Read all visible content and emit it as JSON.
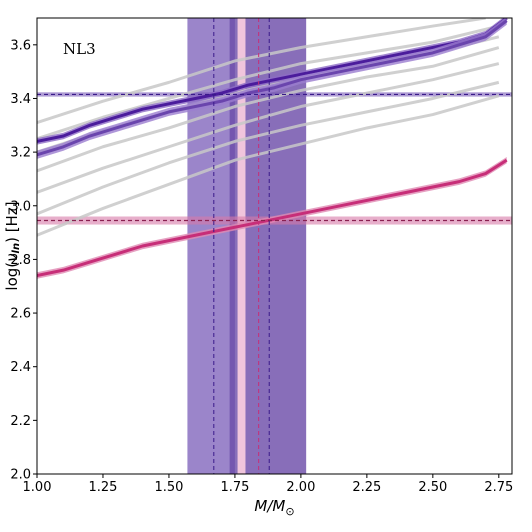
{
  "chart_data": {
    "type": "line",
    "annotation": "NL3",
    "xlabel": "M/M⊙",
    "ylabel": "log(νₗₙ) [Hz]",
    "xlim": [
      1.0,
      2.8
    ],
    "ylim": [
      2.0,
      3.7
    ],
    "xticks": [
      1.0,
      1.25,
      1.5,
      1.75,
      2.0,
      2.25,
      2.5,
      2.75
    ],
    "xtick_labels": [
      "1.00",
      "1.25",
      "1.50",
      "1.75",
      "2.00",
      "2.25",
      "2.50",
      "2.75"
    ],
    "yticks": [
      2.0,
      2.2,
      2.4,
      2.6,
      2.8,
      3.0,
      3.2,
      3.4,
      3.6
    ],
    "ytick_labels": [
      "2.0",
      "2.2",
      "2.4",
      "2.6",
      "2.8",
      "3.0",
      "3.2",
      "3.4",
      "3.6"
    ],
    "colors": {
      "purple_dark": "#4b1c9c",
      "purple_band": "#7a5cb8",
      "purple_light": "#a07fcf",
      "magenta": "#c72e78",
      "magenta_band": "#d779a8",
      "pink_line": "#f2c7d8",
      "gray": "#c8c8c8"
    },
    "vertical_bands": [
      {
        "x_min": 1.57,
        "x_max": 1.75,
        "color": "#7a5cb8",
        "opacity": 0.75
      },
      {
        "x_min": 1.73,
        "x_max": 2.02,
        "color": "#6a4aa8",
        "opacity": 0.8
      },
      {
        "x_min": 1.76,
        "x_max": 1.79,
        "color": "#f6c9dd",
        "opacity": 0.95
      }
    ],
    "vertical_lines": [
      {
        "x": 1.67,
        "color": "#3a1a8a",
        "dashed": true
      },
      {
        "x": 1.84,
        "color": "#c72e78",
        "dashed": true
      },
      {
        "x": 1.88,
        "color": "#3a1a8a",
        "dashed": true
      }
    ],
    "horizontal_bands": [
      {
        "y": 3.415,
        "half_width": 0.008,
        "color": "#7a5cb8",
        "opacity": 0.6
      },
      {
        "y": 2.945,
        "half_width": 0.015,
        "color": "#d779a8",
        "opacity": 0.6
      }
    ],
    "horizontal_lines": [
      {
        "y": 3.415,
        "color": "#3a1a8a",
        "dashed": true
      },
      {
        "y": 2.945,
        "color": "#8a2050",
        "dashed": true
      }
    ],
    "gray_curves": [
      {
        "x": [
          1.0,
          1.25,
          1.5,
          1.75,
          2.0,
          2.25,
          2.5,
          2.7
        ],
        "y": [
          3.31,
          3.39,
          3.46,
          3.54,
          3.59,
          3.63,
          3.67,
          3.7
        ]
      },
      {
        "x": [
          1.0,
          1.25,
          1.5,
          1.75,
          2.0,
          2.25,
          2.5,
          2.75
        ],
        "y": [
          3.25,
          3.33,
          3.4,
          3.47,
          3.53,
          3.57,
          3.61,
          3.67
        ]
      },
      {
        "x": [
          1.0,
          1.25,
          1.5,
          1.75,
          2.0,
          2.25,
          2.5,
          2.75
        ],
        "y": [
          3.2,
          3.28,
          3.35,
          3.42,
          3.48,
          3.53,
          3.57,
          3.63
        ]
      },
      {
        "x": [
          1.0,
          1.25,
          1.5,
          1.75,
          2.0,
          2.25,
          2.5,
          2.75
        ],
        "y": [
          3.13,
          3.22,
          3.29,
          3.37,
          3.43,
          3.48,
          3.52,
          3.59
        ]
      },
      {
        "x": [
          1.0,
          1.25,
          1.5,
          1.75,
          2.0,
          2.25,
          2.5,
          2.75
        ],
        "y": [
          3.05,
          3.14,
          3.22,
          3.3,
          3.37,
          3.42,
          3.47,
          3.53
        ]
      },
      {
        "x": [
          1.0,
          1.25,
          1.5,
          1.75,
          2.0,
          2.25,
          2.5,
          2.75
        ],
        "y": [
          2.97,
          3.07,
          3.16,
          3.24,
          3.3,
          3.35,
          3.4,
          3.46
        ]
      },
      {
        "x": [
          1.0,
          1.25,
          1.5,
          1.75,
          2.0,
          2.25,
          2.5,
          2.75
        ],
        "y": [
          2.89,
          2.99,
          3.08,
          3.17,
          3.23,
          3.29,
          3.34,
          3.41
        ]
      }
    ],
    "series": [
      {
        "x": [
          1.0,
          1.1,
          1.2,
          1.3,
          1.4,
          1.5,
          1.6,
          1.7,
          1.8,
          1.9,
          2.0,
          2.1,
          2.2,
          2.3,
          2.4,
          2.5,
          2.6,
          2.7,
          2.78
        ],
        "y": [
          3.24,
          3.26,
          3.3,
          3.33,
          3.36,
          3.38,
          3.4,
          3.42,
          3.45,
          3.47,
          3.49,
          3.51,
          3.53,
          3.55,
          3.57,
          3.59,
          3.61,
          3.64,
          3.7
        ],
        "color": "#4b1c9c",
        "band_color": "#8d6cc6",
        "band_half_width": 0.012
      },
      {
        "x": [
          1.0,
          1.1,
          1.2,
          1.3,
          1.4,
          1.5,
          1.6,
          1.7,
          1.8,
          1.9,
          2.0,
          2.1,
          2.2,
          2.3,
          2.4,
          2.5,
          2.6,
          2.7,
          2.78
        ],
        "y": [
          3.19,
          3.22,
          3.26,
          3.29,
          3.32,
          3.35,
          3.37,
          3.39,
          3.42,
          3.44,
          3.47,
          3.49,
          3.51,
          3.53,
          3.55,
          3.57,
          3.6,
          3.63,
          3.69
        ],
        "color": "#6a45ad",
        "band_color": "#9b7dcf",
        "band_half_width": 0.015
      },
      {
        "x": [
          1.0,
          1.1,
          1.2,
          1.3,
          1.4,
          1.5,
          1.6,
          1.7,
          1.8,
          1.9,
          2.0,
          2.1,
          2.2,
          2.3,
          2.4,
          2.5,
          2.6,
          2.7,
          2.78
        ],
        "y": [
          2.74,
          2.76,
          2.79,
          2.82,
          2.85,
          2.87,
          2.89,
          2.91,
          2.93,
          2.95,
          2.97,
          2.99,
          3.01,
          3.03,
          3.05,
          3.07,
          3.09,
          3.12,
          3.17
        ],
        "color": "#c72e78",
        "band_color": "#e08ab3",
        "band_half_width": 0.012
      }
    ]
  }
}
